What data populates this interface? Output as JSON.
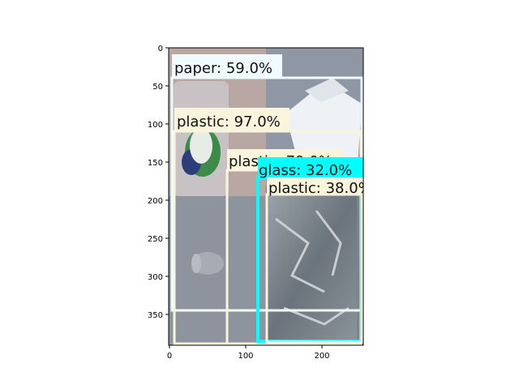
{
  "figure": {
    "x_ticks": [
      "0",
      "100",
      "200"
    ],
    "y_ticks": [
      "0",
      "50",
      "100",
      "150",
      "200",
      "250",
      "300",
      "350"
    ]
  },
  "detections": [
    {
      "label": "paper: 59.0%",
      "color": "#f0fbff"
    },
    {
      "label": "plastic: 97.0%",
      "color": "#f8f5dc"
    },
    {
      "label": "plastic: 79.0%",
      "color": "#f8f5dc"
    },
    {
      "label": "glass: 32.0%",
      "color": "#00ffff"
    },
    {
      "label": "plastic: 38.0%",
      "color": "#f8f5dc"
    }
  ],
  "colors": {
    "bg_left": "#b9a7a3",
    "bg_right": "#8f96a4",
    "paper_sheet": "#eef2f5",
    "bottle_label_green": "#3c8b4a",
    "bottle_label_blue": "#2d3f7a",
    "lower_panel": "#8e949d",
    "bag_dark": "#5f6870"
  }
}
